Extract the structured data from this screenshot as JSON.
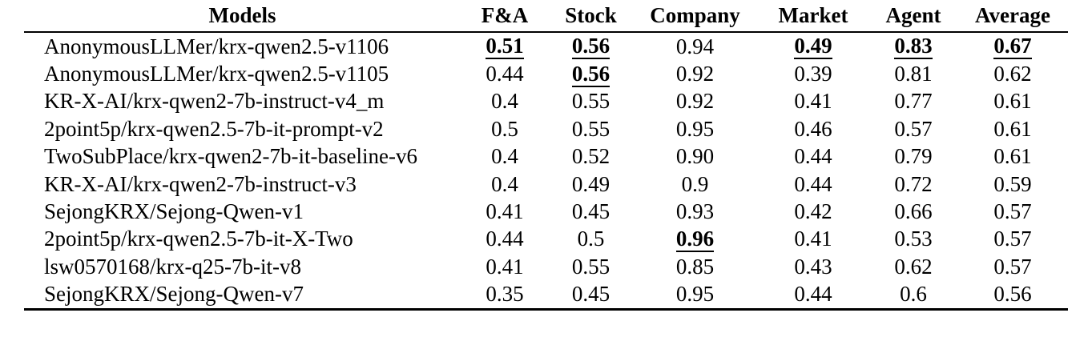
{
  "table": {
    "columns": [
      "Models",
      "F&A",
      "Stock",
      "Company",
      "Market",
      "Agent",
      "Average"
    ],
    "rows": [
      {
        "model": "AnonymousLLMer/krx-qwen2.5-v1106",
        "values": [
          "0.51",
          "0.56",
          "0.94",
          "0.49",
          "0.83",
          "0.67"
        ],
        "emphasis": [
          true,
          true,
          false,
          true,
          true,
          true
        ]
      },
      {
        "model": "AnonymousLLMer/krx-qwen2.5-v1105",
        "values": [
          "0.44",
          "0.56",
          "0.92",
          "0.39",
          "0.81",
          "0.62"
        ],
        "emphasis": [
          false,
          true,
          false,
          false,
          false,
          false
        ]
      },
      {
        "model": "KR-X-AI/krx-qwen2-7b-instruct-v4_m",
        "values": [
          "0.4",
          "0.55",
          "0.92",
          "0.41",
          "0.77",
          "0.61"
        ],
        "emphasis": [
          false,
          false,
          false,
          false,
          false,
          false
        ]
      },
      {
        "model": "2point5p/krx-qwen2.5-7b-it-prompt-v2",
        "values": [
          "0.5",
          "0.55",
          "0.95",
          "0.46",
          "0.57",
          "0.61"
        ],
        "emphasis": [
          false,
          false,
          false,
          false,
          false,
          false
        ]
      },
      {
        "model": "TwoSubPlace/krx-qwen2-7b-it-baseline-v6",
        "values": [
          "0.4",
          "0.52",
          "0.90",
          "0.44",
          "0.79",
          "0.61"
        ],
        "emphasis": [
          false,
          false,
          false,
          false,
          false,
          false
        ]
      },
      {
        "model": "KR-X-AI/krx-qwen2-7b-instruct-v3",
        "values": [
          "0.4",
          "0.49",
          "0.9",
          "0.44",
          "0.72",
          "0.59"
        ],
        "emphasis": [
          false,
          false,
          false,
          false,
          false,
          false
        ]
      },
      {
        "model": "SejongKRX/Sejong-Qwen-v1",
        "values": [
          "0.41",
          "0.45",
          "0.93",
          "0.42",
          "0.66",
          "0.57"
        ],
        "emphasis": [
          false,
          false,
          false,
          false,
          false,
          false
        ]
      },
      {
        "model": "2point5p/krx-qwen2.5-7b-it-X-Two",
        "values": [
          "0.44",
          "0.5",
          "0.96",
          "0.41",
          "0.53",
          "0.57"
        ],
        "emphasis": [
          false,
          false,
          true,
          false,
          false,
          false
        ]
      },
      {
        "model": "lsw0570168/krx-q25-7b-it-v8",
        "values": [
          "0.41",
          "0.55",
          "0.85",
          "0.43",
          "0.62",
          "0.57"
        ],
        "emphasis": [
          false,
          false,
          false,
          false,
          false,
          false
        ]
      },
      {
        "model": "SejongKRX/Sejong-Qwen-v7",
        "values": [
          "0.35",
          "0.45",
          "0.95",
          "0.44",
          "0.6",
          "0.56"
        ],
        "emphasis": [
          false,
          false,
          false,
          false,
          false,
          false
        ]
      }
    ]
  }
}
